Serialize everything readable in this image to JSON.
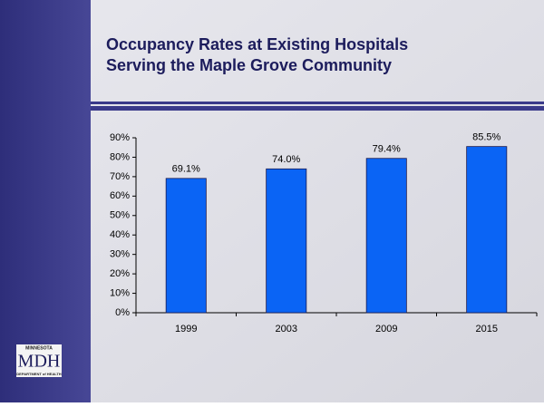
{
  "chart_data": {
    "type": "bar",
    "title": "Occupancy Rates at Existing Hospitals",
    "subtitle": "Serving the Maple Grove Community",
    "categories": [
      "1999",
      "2003",
      "2009",
      "2015"
    ],
    "values": [
      69.1,
      74.0,
      79.4,
      85.5
    ],
    "value_labels": [
      "69.1%",
      "74.0%",
      "79.4%",
      "85.5%"
    ],
    "color": "#0a64f5",
    "ylim": [
      0,
      90
    ],
    "yticks": [
      {
        "value": 0,
        "label": "0%"
      },
      {
        "value": 10,
        "label": "10%"
      },
      {
        "value": 20,
        "label": "20%"
      },
      {
        "value": 30,
        "label": "30%"
      },
      {
        "value": 40,
        "label": "40%"
      },
      {
        "value": 50,
        "label": "50%"
      },
      {
        "value": 60,
        "label": "60%"
      },
      {
        "value": 70,
        "label": "70%"
      },
      {
        "value": 80,
        "label": "80%"
      },
      {
        "value": 90,
        "label": "90%"
      }
    ],
    "grid": false
  },
  "logo": {
    "top": "MINNESOTA",
    "text": "MDH",
    "bottom": "DEPARTMENT of HEALTH"
  }
}
